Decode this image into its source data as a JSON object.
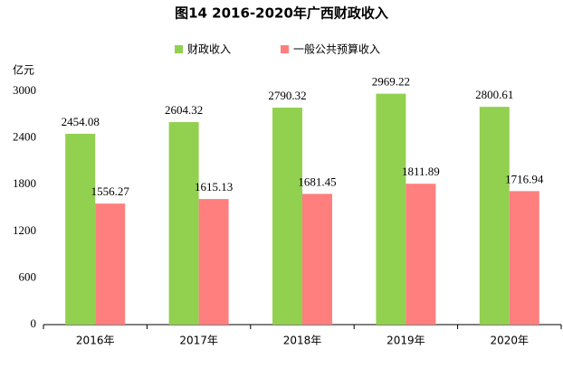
{
  "chart_data": {
    "type": "bar",
    "title": "图14 2016-2020年广西财政收入",
    "y_label": "亿元",
    "categories": [
      "2016年",
      "2017年",
      "2018年",
      "2019年",
      "2020年"
    ],
    "series": [
      {
        "name": "财政收入",
        "color": "#92d050",
        "values": [
          2454.08,
          2604.32,
          2790.32,
          2969.22,
          2800.61
        ]
      },
      {
        "name": "一般公共预算收入",
        "color": "#ff7f7f",
        "values": [
          1556.27,
          1615.13,
          1681.45,
          1811.89,
          1716.94
        ]
      }
    ],
    "ylim": [
      0,
      3000
    ],
    "yticks": [
      0,
      600,
      1200,
      1800,
      2400,
      3000
    ],
    "grid": false,
    "legend": "top"
  }
}
